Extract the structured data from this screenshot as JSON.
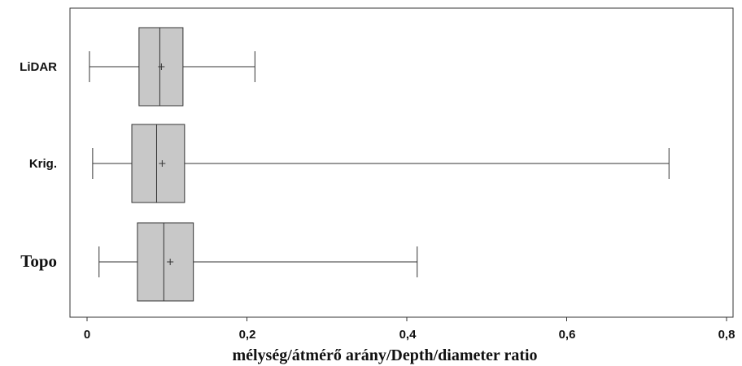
{
  "chart_data": {
    "type": "boxplot",
    "orientation": "horizontal",
    "xlabel": "mélység/átmérő arány/Depth/diameter ratio",
    "xlim": [
      0,
      0.8
    ],
    "xticks": [
      0,
      0.2,
      0.4,
      0.6,
      0.8
    ],
    "xtick_labels": [
      "0",
      "0,2",
      "0,4",
      "0,6",
      "0,8"
    ],
    "box_color": "#c8c8c8",
    "line_color": "#333333",
    "grid": false,
    "categories": [
      "LiDAR",
      "Krig.",
      "Topo"
    ],
    "series": [
      {
        "category": "LiDAR",
        "min": 0.003,
        "q1": 0.065,
        "median": 0.091,
        "q3": 0.12,
        "max": 0.21,
        "mean": 0.093
      },
      {
        "category": "Krig.",
        "min": 0.007,
        "q1": 0.056,
        "median": 0.087,
        "q3": 0.122,
        "max": 0.728,
        "mean": 0.094
      },
      {
        "category": "Topo",
        "min": 0.015,
        "q1": 0.063,
        "median": 0.096,
        "q3": 0.133,
        "max": 0.413,
        "mean": 0.104
      }
    ]
  }
}
